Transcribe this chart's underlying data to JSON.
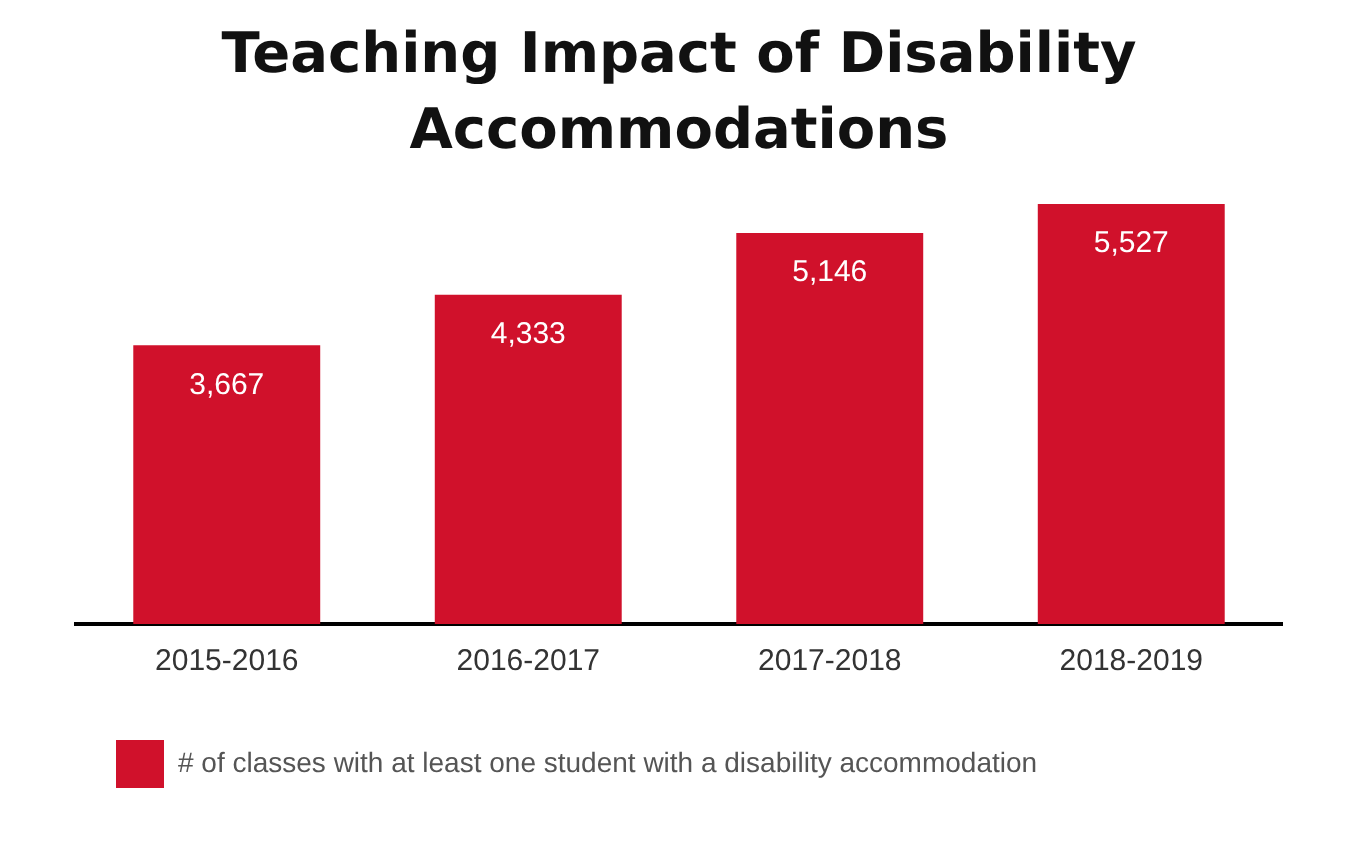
{
  "chart_data": {
    "type": "bar",
    "title": "Teaching Impact of Disability Accommodations",
    "categories": [
      "2015-2016",
      "2016-2017",
      "2017-2018",
      "2018-2019"
    ],
    "series": [
      {
        "name": "# of classes with at least one student with a disability accommodation",
        "color": "#d0112b",
        "values": [
          3667,
          4333,
          5146,
          5527
        ],
        "value_labels": [
          "3,667",
          "4,333",
          "5,146",
          "5,527"
        ]
      }
    ],
    "legend": "bottom left",
    "grid": false
  }
}
